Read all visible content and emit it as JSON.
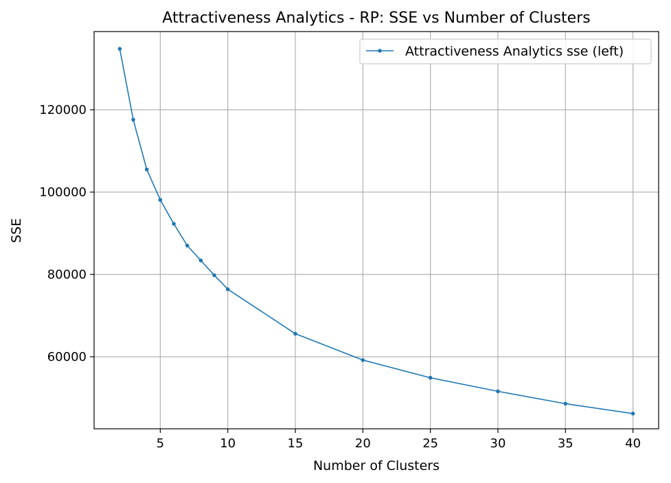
{
  "chart_data": {
    "type": "line",
    "title": "Attractiveness Analytics - RP: SSE vs Number of Clusters",
    "xlabel": "Number of Clusters",
    "ylabel": "SSE",
    "xlim": [
      0.1,
      41.9
    ],
    "ylim": [
      42500,
      139000
    ],
    "xticks": [
      5,
      10,
      15,
      20,
      25,
      30,
      35,
      40
    ],
    "xtick_labels": [
      "5",
      "10",
      "15",
      "20",
      "25",
      "30",
      "35",
      "40"
    ],
    "yticks": [
      60000,
      80000,
      100000,
      120000
    ],
    "ytick_labels": [
      "60000",
      "80000",
      "100000",
      "120000"
    ],
    "grid": true,
    "legend_position": "top-right",
    "series": [
      {
        "name": "Attractiveness Analytics sse (left)",
        "color": "#1f77b4",
        "marker": "point",
        "x": [
          2,
          3,
          4,
          5,
          6,
          7,
          8,
          9,
          10,
          15,
          20,
          25,
          30,
          35,
          40
        ],
        "y": [
          134800,
          117600,
          105500,
          98100,
          92300,
          87000,
          83400,
          79800,
          76400,
          65600,
          59200,
          54900,
          51600,
          48600,
          46200
        ]
      }
    ]
  }
}
